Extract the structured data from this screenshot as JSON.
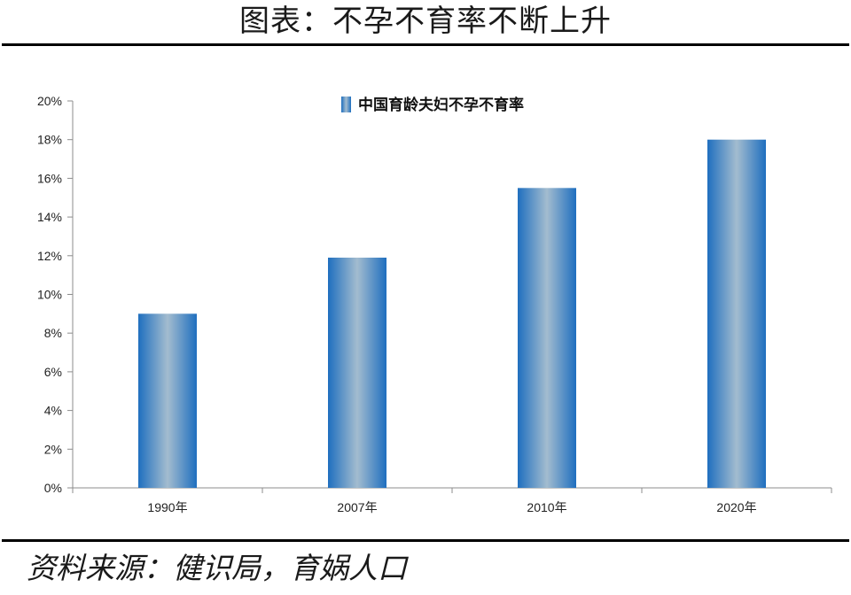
{
  "page": {
    "title": "图表：不孕不育率不断上升",
    "source": "资料来源：健识局，育娲人口"
  },
  "chart_data": {
    "type": "bar",
    "categories": [
      "1990年",
      "2007年",
      "2010年",
      "2020年"
    ],
    "series": [
      {
        "name": "中国育龄夫妇不孕不育率",
        "values": [
          9.0,
          11.9,
          15.5,
          18.0
        ]
      }
    ],
    "y_tick_labels": [
      "0%",
      "2%",
      "4%",
      "6%",
      "8%",
      "10%",
      "12%",
      "14%",
      "16%",
      "18%",
      "20%"
    ],
    "ylim": [
      0,
      20
    ],
    "y_unit": "%",
    "grid": false,
    "legend_position": "top-center",
    "colors": {
      "bar_edge": "#1f6fbf",
      "bar_center": "#a3bccf",
      "axis": "#8c8c8c"
    }
  }
}
